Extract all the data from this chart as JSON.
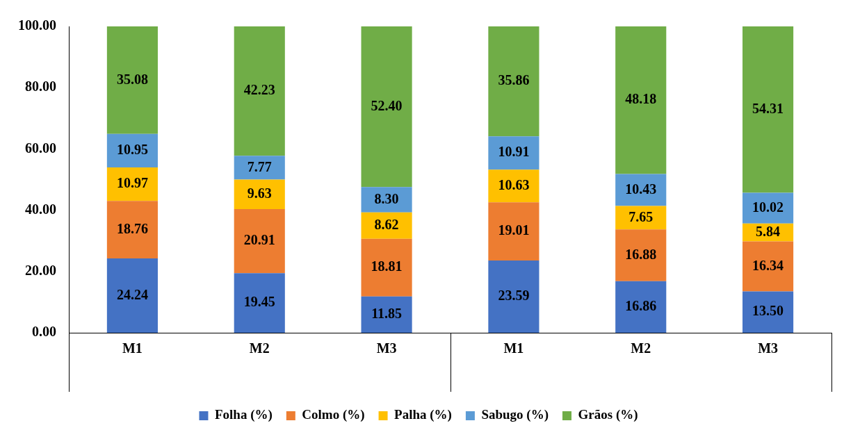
{
  "chart_data": {
    "type": "bar",
    "stacked": true,
    "categories": [
      "M1",
      "M2",
      "M3",
      "M1",
      "M2",
      "M3"
    ],
    "series": [
      {
        "name": "Folha (%)",
        "color": "#4472c4",
        "values": [
          24.24,
          19.45,
          11.85,
          23.59,
          16.86,
          13.5
        ],
        "value_labels": [
          "24.24",
          "19.45",
          "11.85",
          "23.59",
          "16.86",
          "13.50"
        ]
      },
      {
        "name": "Colmo (%)",
        "color": "#ed7d31",
        "values": [
          18.76,
          20.91,
          18.81,
          19.01,
          16.88,
          16.34
        ],
        "value_labels": [
          "18.76",
          "20.91",
          "18.81",
          "19.01",
          "16.88",
          "16.34"
        ]
      },
      {
        "name": "Palha (%)",
        "color": "#ffc000",
        "values": [
          10.97,
          9.63,
          8.62,
          10.63,
          7.65,
          5.84
        ],
        "value_labels": [
          "10.97",
          "9.63",
          "8.62",
          "10.63",
          "7.65",
          "5.84"
        ]
      },
      {
        "name": "Sabugo (%)",
        "color": "#5b9bd5",
        "values": [
          10.95,
          7.77,
          8.3,
          10.91,
          10.43,
          10.02
        ],
        "value_labels": [
          "10.95",
          "7.77",
          "8.30",
          "10.91",
          "10.43",
          "10.02"
        ]
      },
      {
        "name": "Grãos (%)",
        "color": "#70ad47",
        "values": [
          35.08,
          42.23,
          52.4,
          35.86,
          48.18,
          54.31
        ],
        "value_labels": [
          "35.08",
          "42.23",
          "52.40",
          "35.86",
          "48.18",
          "54.31"
        ]
      }
    ],
    "ylim": [
      0,
      100
    ],
    "yticks": [
      {
        "value": 0,
        "label": "0.00"
      },
      {
        "value": 20,
        "label": "20.00"
      },
      {
        "value": 40,
        "label": "40.00"
      },
      {
        "value": 60,
        "label": "60.00"
      },
      {
        "value": 80,
        "label": "80.00"
      },
      {
        "value": 100,
        "label": "100.00"
      }
    ],
    "grid": false,
    "legend": "bottom"
  }
}
